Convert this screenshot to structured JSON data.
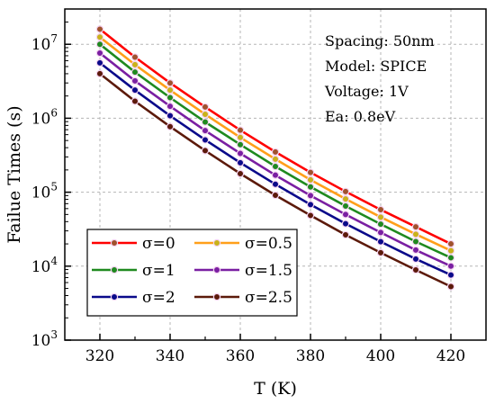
{
  "chart_data": {
    "type": "line",
    "title": "",
    "xlabel": "T (K)",
    "ylabel": "Failue Times (s)",
    "xlim": [
      310,
      430
    ],
    "ylim": [
      1000,
      30000000
    ],
    "yscale": "log",
    "xticks": [
      320,
      340,
      360,
      380,
      400,
      420
    ],
    "yticks": [
      {
        "value": 1000,
        "base": "10",
        "exp": "3"
      },
      {
        "value": 10000,
        "base": "10",
        "exp": "4"
      },
      {
        "value": 100000,
        "base": "10",
        "exp": "5"
      },
      {
        "value": 1000000,
        "base": "10",
        "exp": "6"
      },
      {
        "value": 10000000,
        "base": "10",
        "exp": "7"
      }
    ],
    "grid": true,
    "legend_position": "bottom-left",
    "annotations": [
      "Spacing: 50nm",
      "Model: SPICE",
      "Voltage: 1V",
      "Ea: 0.8eV"
    ],
    "x": [
      320,
      330,
      340,
      350,
      360,
      370,
      380,
      390,
      400,
      410,
      420
    ],
    "series": [
      {
        "name": "σ=0",
        "line_color": "#ff0000",
        "marker_color": "#a0522d",
        "values": [
          16000000,
          6700000,
          3000000,
          1420000,
          690000,
          350000,
          185000,
          102000,
          58000,
          34000,
          20000
        ]
      },
      {
        "name": "σ=0.5",
        "line_color": "#ff9f1a",
        "marker_color": "#c9b21a",
        "values": [
          12500000,
          5300000,
          2400000,
          1130000,
          550000,
          280000,
          147000,
          81000,
          46000,
          27000,
          16200
        ]
      },
      {
        "name": "σ=1",
        "line_color": "#1f8a1f",
        "marker_color": "#1f8a1f",
        "values": [
          10000000,
          4200000,
          1900000,
          890000,
          440000,
          223000,
          118000,
          65000,
          37000,
          21500,
          13000
        ]
      },
      {
        "name": "σ=1.5",
        "line_color": "#7a1fa2",
        "marker_color": "#7a1fa2",
        "values": [
          7600000,
          3200000,
          1450000,
          680000,
          335000,
          170000,
          90000,
          50000,
          28500,
          16500,
          10000
        ]
      },
      {
        "name": "σ=2",
        "line_color": "#0a0a8a",
        "marker_color": "#0a0a8a",
        "values": [
          5600000,
          2400000,
          1080000,
          510000,
          250000,
          128000,
          68000,
          37500,
          21400,
          12500,
          7600
        ]
      },
      {
        "name": "σ=2.5",
        "line_color": "#5c1a0a",
        "marker_color": "#5c1a0a",
        "values": [
          4000000,
          1700000,
          770000,
          365000,
          178000,
          91000,
          48500,
          26500,
          15200,
          8900,
          5300
        ]
      }
    ]
  }
}
